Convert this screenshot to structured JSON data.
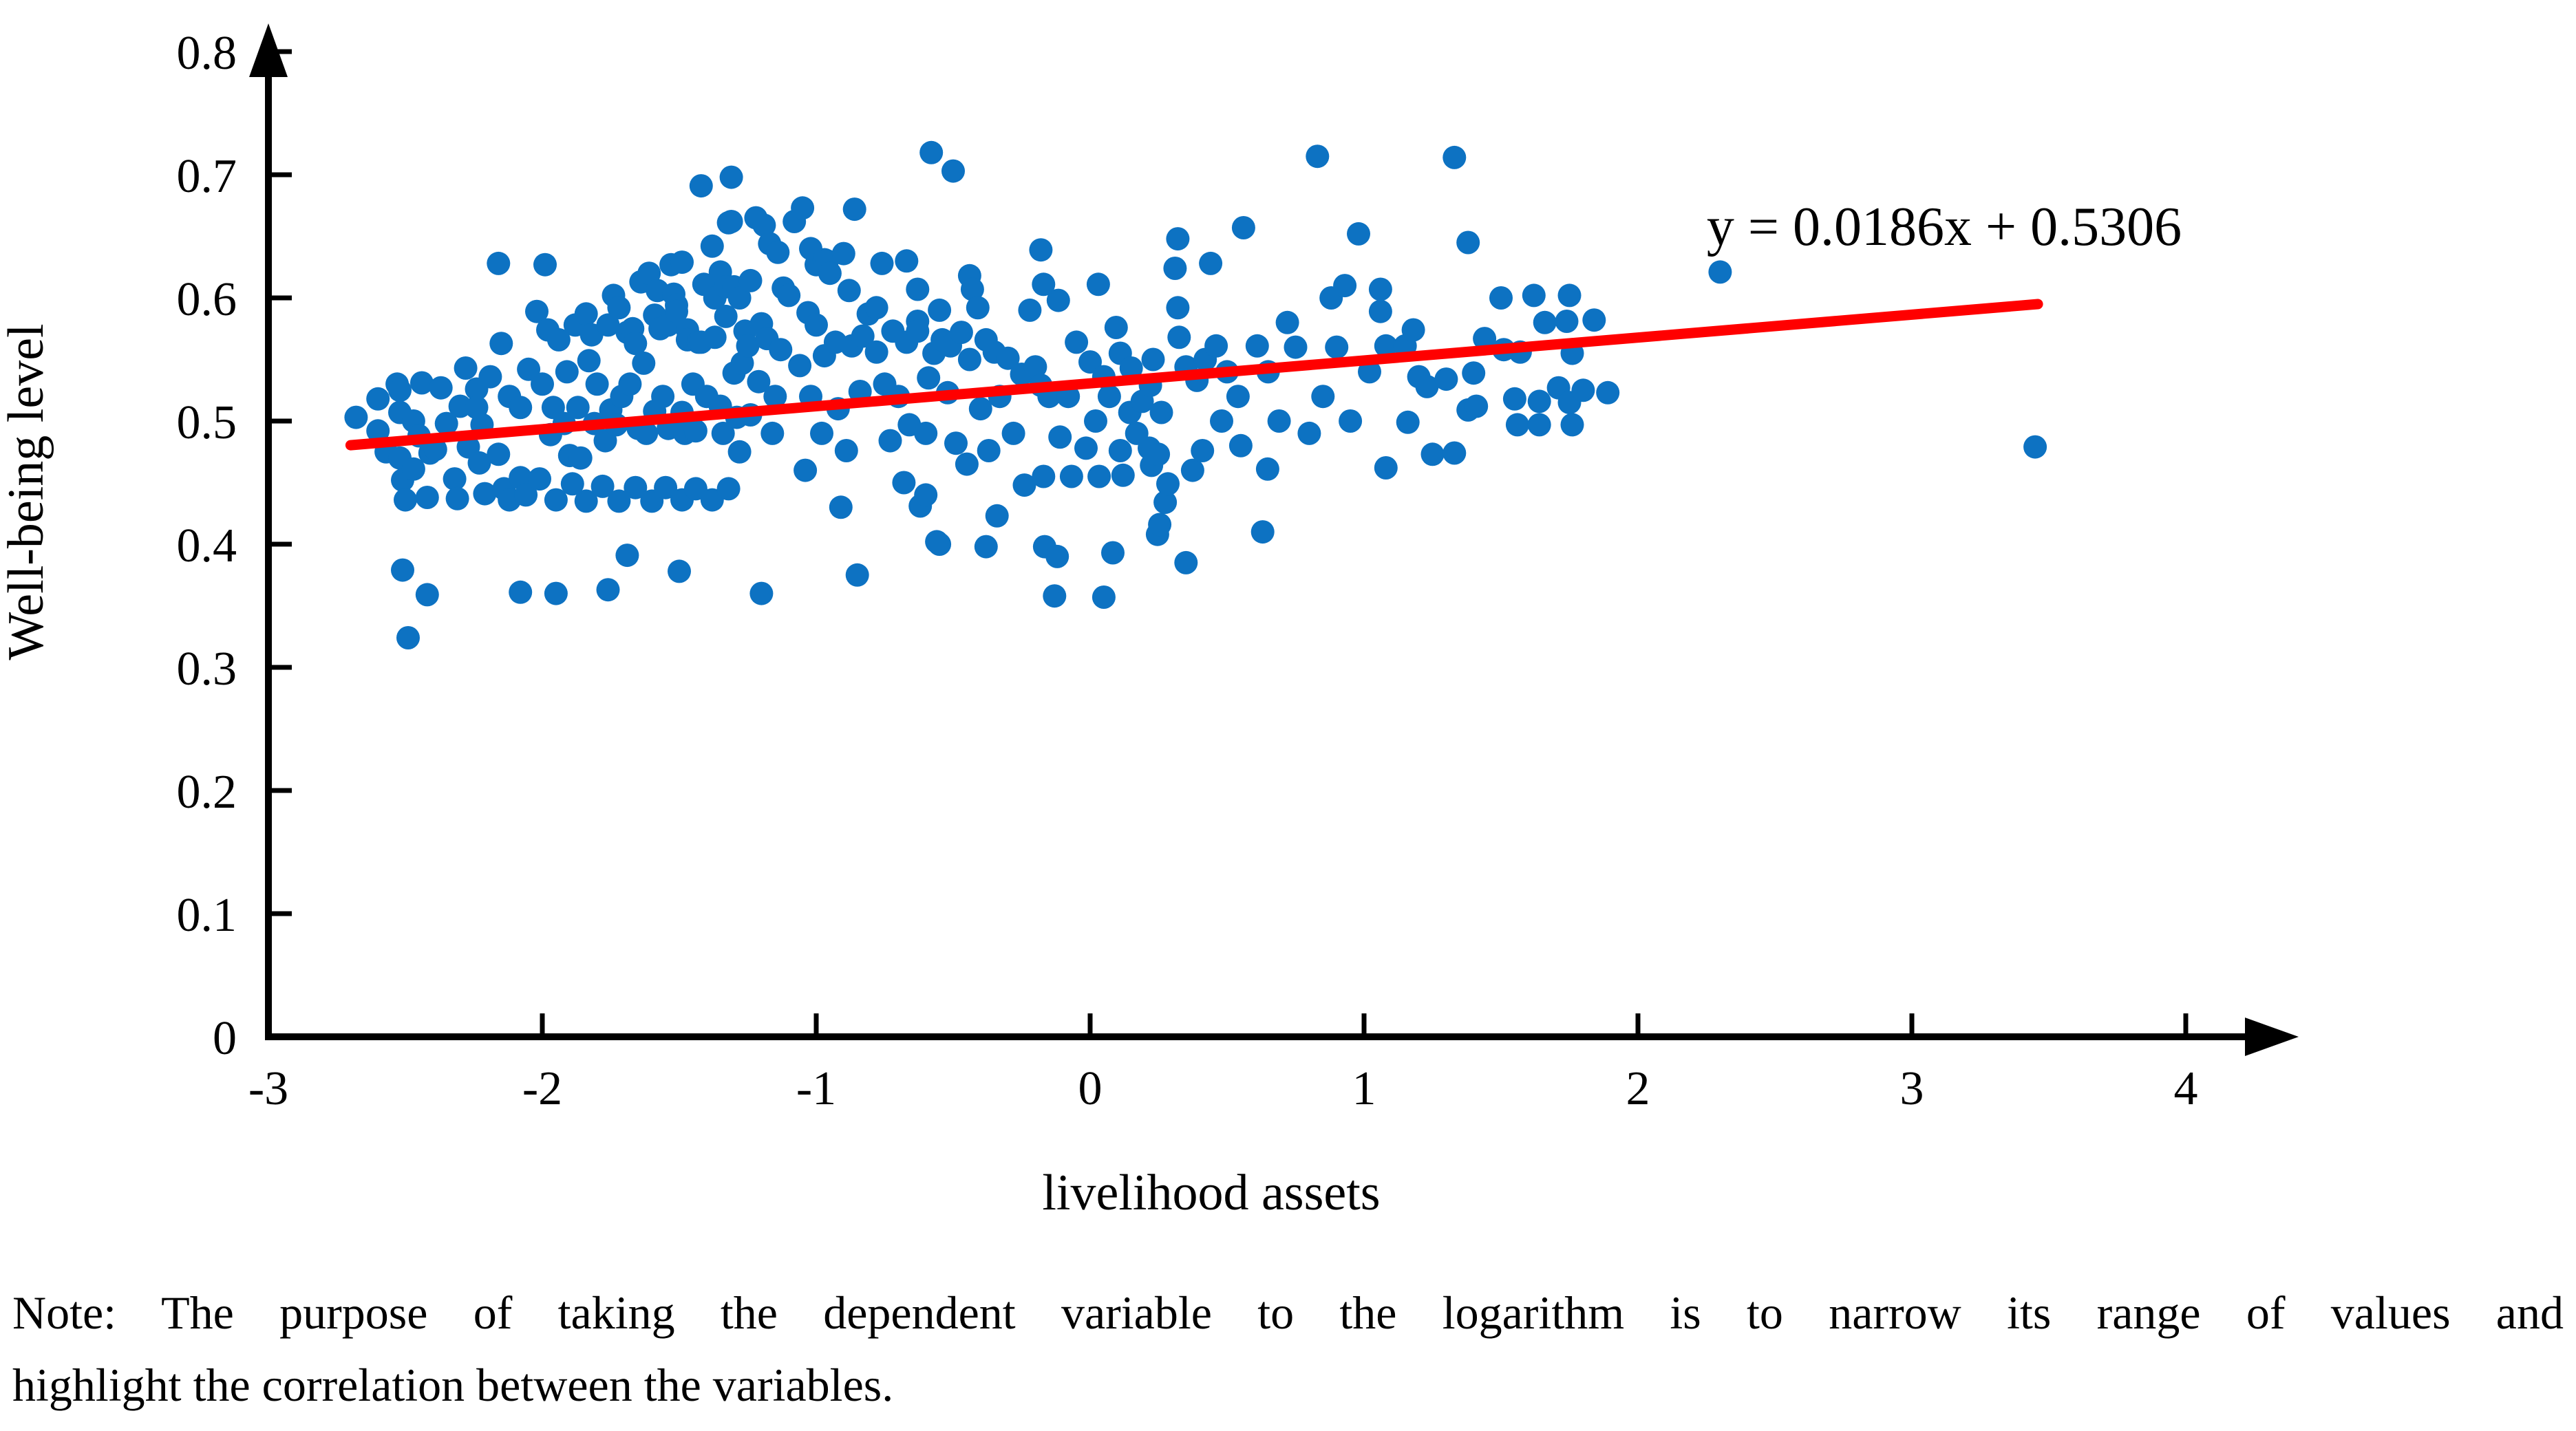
{
  "note": {
    "line1": "Note: The purpose of taking the dependent variable to the logarithm is to narrow its range of values and",
    "line2": "highlight the correlation between the variables."
  },
  "chart_data": {
    "type": "scatter",
    "title": "",
    "xlabel": "livelihood assets",
    "ylabel": "Well-being level",
    "xlim": [
      -3,
      4
    ],
    "ylim": [
      0,
      0.8
    ],
    "grid": false,
    "xticks": [
      {
        "v": -3,
        "label": "-3"
      },
      {
        "v": -2,
        "label": "-2"
      },
      {
        "v": -1,
        "label": "-1"
      },
      {
        "v": 0,
        "label": "0"
      },
      {
        "v": 1,
        "label": "1"
      },
      {
        "v": 2,
        "label": "2"
      },
      {
        "v": 3,
        "label": "3"
      },
      {
        "v": 4,
        "label": "4"
      }
    ],
    "yticks": [
      {
        "v": 0,
        "label": "0"
      },
      {
        "v": 0.1,
        "label": "0.1"
      },
      {
        "v": 0.2,
        "label": "0.2"
      },
      {
        "v": 0.3,
        "label": "0.3"
      },
      {
        "v": 0.4,
        "label": "0.4"
      },
      {
        "v": 0.5,
        "label": "0.5"
      },
      {
        "v": 0.6,
        "label": "0.6"
      },
      {
        "v": 0.7,
        "label": "0.7"
      },
      {
        "v": 0.8,
        "label": "0.8"
      }
    ],
    "equation_label": "y = 0.0186x + 0.5306",
    "trendline": {
      "slope": 0.0186,
      "intercept": 0.5306,
      "x_start": -2.7,
      "x_end": 3.46,
      "color": "#ff0000"
    },
    "point_color": "#0d72c2",
    "axis_color": "#000000",
    "points": [
      [
        -2.68,
        0.503
      ],
      [
        -2.6,
        0.518
      ],
      [
        -2.6,
        0.492
      ],
      [
        -2.57,
        0.475
      ],
      [
        -2.53,
        0.53
      ],
      [
        -2.52,
        0.525
      ],
      [
        -2.52,
        0.507
      ],
      [
        -2.52,
        0.47
      ],
      [
        -2.51,
        0.452
      ],
      [
        -2.51,
        0.379
      ],
      [
        -2.5,
        0.436
      ],
      [
        -2.49,
        0.324
      ],
      [
        -2.47,
        0.461
      ],
      [
        -2.47,
        0.5
      ],
      [
        -2.45,
        0.488
      ],
      [
        -2.44,
        0.531
      ],
      [
        -2.42,
        0.438
      ],
      [
        -2.42,
        0.359
      ],
      [
        -2.41,
        0.474
      ],
      [
        -2.39,
        0.477
      ],
      [
        -2.37,
        0.527
      ],
      [
        -2.35,
        0.498
      ],
      [
        -2.32,
        0.453
      ],
      [
        -2.31,
        0.437
      ],
      [
        -2.3,
        0.512
      ],
      [
        -2.28,
        0.543
      ],
      [
        -2.27,
        0.479
      ],
      [
        -2.24,
        0.526
      ],
      [
        -2.24,
        0.511
      ],
      [
        -2.23,
        0.466
      ],
      [
        -2.22,
        0.497
      ],
      [
        -2.21,
        0.441
      ],
      [
        -2.19,
        0.536
      ],
      [
        -2.16,
        0.628
      ],
      [
        -2.16,
        0.473
      ],
      [
        -2.15,
        0.563
      ],
      [
        -2.14,
        0.445
      ],
      [
        -2.12,
        0.52
      ],
      [
        -2.12,
        0.436
      ],
      [
        -2.08,
        0.511
      ],
      [
        -2.08,
        0.454
      ],
      [
        -2.08,
        0.361
      ],
      [
        -2.06,
        0.44
      ],
      [
        -2.05,
        0.542
      ],
      [
        -2.02,
        0.589
      ],
      [
        -2.01,
        0.453
      ],
      [
        -2.0,
        0.53
      ],
      [
        -1.99,
        0.627
      ],
      [
        -1.98,
        0.574
      ],
      [
        -1.97,
        0.489
      ],
      [
        -1.96,
        0.511
      ],
      [
        -1.95,
        0.436
      ],
      [
        -1.95,
        0.36
      ],
      [
        -1.94,
        0.566
      ],
      [
        -1.92,
        0.498
      ],
      [
        -1.91,
        0.54
      ],
      [
        -1.9,
        0.472
      ],
      [
        -1.89,
        0.449
      ],
      [
        -1.88,
        0.578
      ],
      [
        -1.87,
        0.511
      ],
      [
        -1.86,
        0.47
      ],
      [
        -1.84,
        0.587
      ],
      [
        -1.84,
        0.435
      ],
      [
        -1.83,
        0.549
      ],
      [
        -1.82,
        0.57
      ],
      [
        -1.81,
        0.498
      ],
      [
        -1.8,
        0.53
      ],
      [
        -1.78,
        0.447
      ],
      [
        -1.77,
        0.484
      ],
      [
        -1.76,
        0.578
      ],
      [
        -1.76,
        0.363
      ],
      [
        -1.75,
        0.509
      ],
      [
        -1.74,
        0.602
      ],
      [
        -1.73,
        0.497
      ],
      [
        -1.72,
        0.592
      ],
      [
        -1.72,
        0.435
      ],
      [
        -1.71,
        0.52
      ],
      [
        -1.69,
        0.572
      ],
      [
        -1.69,
        0.391
      ],
      [
        -1.68,
        0.53
      ],
      [
        -1.67,
        0.575
      ],
      [
        -1.66,
        0.563
      ],
      [
        -1.66,
        0.446
      ],
      [
        -1.65,
        0.494
      ],
      [
        -1.64,
        0.613
      ],
      [
        -1.63,
        0.547
      ],
      [
        -1.62,
        0.49
      ],
      [
        -1.61,
        0.62
      ],
      [
        -1.6,
        0.435
      ],
      [
        -1.59,
        0.586
      ],
      [
        -1.59,
        0.508
      ],
      [
        -1.58,
        0.606
      ],
      [
        -1.57,
        0.575
      ],
      [
        -1.56,
        0.52
      ],
      [
        -1.55,
        0.446
      ],
      [
        -1.54,
        0.578
      ],
      [
        -1.54,
        0.494
      ],
      [
        -1.53,
        0.627
      ],
      [
        -1.52,
        0.603
      ],
      [
        -1.51,
        0.594
      ],
      [
        -1.51,
        0.589
      ],
      [
        -1.5,
        0.378
      ],
      [
        -1.49,
        0.629
      ],
      [
        -1.49,
        0.507
      ],
      [
        -1.49,
        0.436
      ],
      [
        -1.48,
        0.49
      ],
      [
        -1.47,
        0.574
      ],
      [
        -1.47,
        0.566
      ],
      [
        -1.45,
        0.53
      ],
      [
        -1.44,
        0.492
      ],
      [
        -1.44,
        0.445
      ],
      [
        -1.43,
        0.564
      ],
      [
        -1.42,
        0.691
      ],
      [
        -1.42,
        0.564
      ],
      [
        -1.41,
        0.611
      ],
      [
        -1.4,
        0.52
      ],
      [
        -1.38,
        0.642
      ],
      [
        -1.38,
        0.436
      ],
      [
        -1.37,
        0.6
      ],
      [
        -1.37,
        0.568
      ],
      [
        -1.35,
        0.621
      ],
      [
        -1.35,
        0.512
      ],
      [
        -1.34,
        0.49
      ],
      [
        -1.33,
        0.609
      ],
      [
        -1.33,
        0.585
      ],
      [
        -1.32,
        0.661
      ],
      [
        -1.32,
        0.445
      ],
      [
        -1.31,
        0.698
      ],
      [
        -1.31,
        0.662
      ],
      [
        -1.3,
        0.609
      ],
      [
        -1.3,
        0.539
      ],
      [
        -1.29,
        0.503
      ],
      [
        -1.28,
        0.6
      ],
      [
        -1.28,
        0.475
      ],
      [
        -1.27,
        0.547
      ],
      [
        -1.26,
        0.573
      ],
      [
        -1.25,
        0.561
      ],
      [
        -1.24,
        0.614
      ],
      [
        -1.24,
        0.505
      ],
      [
        -1.22,
        0.665
      ],
      [
        -1.21,
        0.532
      ],
      [
        -1.2,
        0.579
      ],
      [
        -1.2,
        0.36
      ],
      [
        -1.19,
        0.659
      ],
      [
        -1.18,
        0.567
      ],
      [
        -1.17,
        0.644
      ],
      [
        -1.16,
        0.49
      ],
      [
        -1.15,
        0.52
      ],
      [
        -1.14,
        0.637
      ],
      [
        -1.13,
        0.558
      ],
      [
        -1.12,
        0.608
      ],
      [
        -1.1,
        0.602
      ],
      [
        -1.08,
        0.662
      ],
      [
        -1.06,
        0.545
      ],
      [
        -1.05,
        0.673
      ],
      [
        -1.04,
        0.46
      ],
      [
        -1.03,
        0.588
      ],
      [
        -1.02,
        0.64
      ],
      [
        -1.02,
        0.52
      ],
      [
        -1.0,
        0.627
      ],
      [
        -1.0,
        0.578
      ],
      [
        -0.98,
        0.49
      ],
      [
        -0.97,
        0.631
      ],
      [
        -0.97,
        0.553
      ],
      [
        -0.96,
        0.63
      ],
      [
        -0.95,
        0.62
      ],
      [
        -0.93,
        0.564
      ],
      [
        -0.92,
        0.51
      ],
      [
        -0.91,
        0.43
      ],
      [
        -0.9,
        0.636
      ],
      [
        -0.89,
        0.476
      ],
      [
        -0.88,
        0.606
      ],
      [
        -0.87,
        0.561
      ],
      [
        -0.86,
        0.672
      ],
      [
        -0.85,
        0.375
      ],
      [
        -0.84,
        0.524
      ],
      [
        -0.83,
        0.569
      ],
      [
        -0.81,
        0.587
      ],
      [
        -0.78,
        0.592
      ],
      [
        -0.78,
        0.556
      ],
      [
        -0.76,
        0.628
      ],
      [
        -0.75,
        0.53
      ],
      [
        -0.73,
        0.484
      ],
      [
        -0.72,
        0.573
      ],
      [
        -0.7,
        0.52
      ],
      [
        -0.68,
        0.45
      ],
      [
        -0.67,
        0.63
      ],
      [
        -0.67,
        0.564
      ],
      [
        -0.66,
        0.497
      ],
      [
        -0.63,
        0.607
      ],
      [
        -0.63,
        0.581
      ],
      [
        -0.63,
        0.573
      ],
      [
        -0.62,
        0.431
      ],
      [
        -0.6,
        0.49
      ],
      [
        -0.6,
        0.44
      ],
      [
        -0.59,
        0.535
      ],
      [
        -0.58,
        0.718
      ],
      [
        -0.57,
        0.555
      ],
      [
        -0.56,
        0.402
      ],
      [
        -0.55,
        0.59
      ],
      [
        -0.55,
        0.4
      ],
      [
        -0.54,
        0.566
      ],
      [
        -0.52,
        0.523
      ],
      [
        -0.51,
        0.561
      ],
      [
        -0.5,
        0.703
      ],
      [
        -0.49,
        0.482
      ],
      [
        -0.47,
        0.572
      ],
      [
        -0.45,
        0.465
      ],
      [
        -0.44,
        0.618
      ],
      [
        -0.44,
        0.55
      ],
      [
        -0.43,
        0.607
      ],
      [
        -0.41,
        0.592
      ],
      [
        -0.4,
        0.51
      ],
      [
        -0.38,
        0.566
      ],
      [
        -0.38,
        0.398
      ],
      [
        -0.37,
        0.476
      ],
      [
        -0.35,
        0.556
      ],
      [
        -0.34,
        0.423
      ],
      [
        -0.33,
        0.52
      ],
      [
        -0.3,
        0.551
      ],
      [
        -0.28,
        0.49
      ],
      [
        -0.25,
        0.538
      ],
      [
        -0.24,
        0.448
      ],
      [
        -0.22,
        0.59
      ],
      [
        -0.2,
        0.544
      ],
      [
        -0.18,
        0.639
      ],
      [
        -0.18,
        0.529
      ],
      [
        -0.17,
        0.611
      ],
      [
        -0.17,
        0.455
      ],
      [
        -0.166,
        0.398
      ],
      [
        -0.15,
        0.52
      ],
      [
        -0.13,
        0.358
      ],
      [
        -0.12,
        0.39
      ],
      [
        -0.116,
        0.598
      ],
      [
        -0.11,
        0.487
      ],
      [
        -0.08,
        0.52
      ],
      [
        -0.068,
        0.455
      ],
      [
        -0.05,
        0.564
      ],
      [
        -0.015,
        0.478
      ],
      [
        0.0,
        0.548
      ],
      [
        0.02,
        0.5
      ],
      [
        0.03,
        0.611
      ],
      [
        0.033,
        0.455
      ],
      [
        0.05,
        0.536
      ],
      [
        0.05,
        0.357
      ],
      [
        0.07,
        0.52
      ],
      [
        0.083,
        0.393
      ],
      [
        0.095,
        0.576
      ],
      [
        0.11,
        0.555
      ],
      [
        0.11,
        0.476
      ],
      [
        0.12,
        0.456
      ],
      [
        0.145,
        0.507
      ],
      [
        0.15,
        0.543
      ],
      [
        0.17,
        0.49
      ],
      [
        0.19,
        0.516
      ],
      [
        0.216,
        0.478
      ],
      [
        0.22,
        0.529
      ],
      [
        0.224,
        0.464
      ],
      [
        0.23,
        0.55
      ],
      [
        0.246,
        0.408
      ],
      [
        0.249,
        0.473
      ],
      [
        0.254,
        0.416
      ],
      [
        0.26,
        0.507
      ],
      [
        0.274,
        0.434
      ],
      [
        0.284,
        0.449
      ],
      [
        0.31,
        0.624
      ],
      [
        0.32,
        0.648
      ],
      [
        0.32,
        0.592
      ],
      [
        0.325,
        0.568
      ],
      [
        0.35,
        0.544
      ],
      [
        0.35,
        0.385
      ],
      [
        0.374,
        0.46
      ],
      [
        0.39,
        0.533
      ],
      [
        0.41,
        0.476
      ],
      [
        0.42,
        0.55
      ],
      [
        0.44,
        0.628
      ],
      [
        0.46,
        0.561
      ],
      [
        0.48,
        0.5
      ],
      [
        0.5,
        0.54
      ],
      [
        0.54,
        0.52
      ],
      [
        0.55,
        0.48
      ],
      [
        0.56,
        0.657
      ],
      [
        0.61,
        0.561
      ],
      [
        0.63,
        0.41
      ],
      [
        0.648,
        0.461
      ],
      [
        0.65,
        0.54
      ],
      [
        0.69,
        0.5
      ],
      [
        0.72,
        0.58
      ],
      [
        0.75,
        0.56
      ],
      [
        0.8,
        0.49
      ],
      [
        0.83,
        0.715
      ],
      [
        0.85,
        0.52
      ],
      [
        0.88,
        0.6
      ],
      [
        0.9,
        0.56
      ],
      [
        0.93,
        0.61
      ],
      [
        0.95,
        0.5
      ],
      [
        0.98,
        0.652
      ],
      [
        1.02,
        0.54
      ],
      [
        1.06,
        0.607
      ],
      [
        1.06,
        0.589
      ],
      [
        1.08,
        0.561
      ],
      [
        1.08,
        0.462
      ],
      [
        1.15,
        0.561
      ],
      [
        1.16,
        0.499
      ],
      [
        1.18,
        0.574
      ],
      [
        1.2,
        0.536
      ],
      [
        1.23,
        0.528
      ],
      [
        1.25,
        0.473
      ],
      [
        1.3,
        0.534
      ],
      [
        1.33,
        0.714
      ],
      [
        1.33,
        0.474
      ],
      [
        1.38,
        0.645
      ],
      [
        1.38,
        0.509
      ],
      [
        1.4,
        0.539
      ],
      [
        1.41,
        0.512
      ],
      [
        1.44,
        0.567
      ],
      [
        1.5,
        0.6
      ],
      [
        1.51,
        0.558
      ],
      [
        1.55,
        0.518
      ],
      [
        1.56,
        0.497
      ],
      [
        1.57,
        0.556
      ],
      [
        1.62,
        0.602
      ],
      [
        1.64,
        0.516
      ],
      [
        1.64,
        0.497
      ],
      [
        1.66,
        0.58
      ],
      [
        1.71,
        0.527
      ],
      [
        1.74,
        0.581
      ],
      [
        1.75,
        0.602
      ],
      [
        1.75,
        0.515
      ],
      [
        1.76,
        0.555
      ],
      [
        1.76,
        0.497
      ],
      [
        1.8,
        0.525
      ],
      [
        1.84,
        0.582
      ],
      [
        1.89,
        0.523
      ],
      [
        2.3,
        0.621
      ],
      [
        3.45,
        0.479
      ]
    ]
  }
}
